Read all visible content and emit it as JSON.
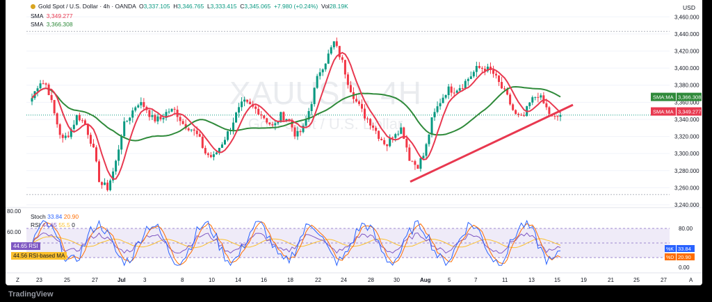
{
  "header": {
    "title": "Gold Spot / U.S. Dollar · 4h · OANDA",
    "open_label": "O",
    "open": "3,337.105",
    "high_label": "H",
    "high": "3,346.765",
    "low_label": "L",
    "low": "3,333.415",
    "close_label": "C",
    "close": "3,345.065",
    "change": "+7.980 (+0.24%)",
    "vol_label": "Vol",
    "vol": "28.19K",
    "sma1_label": "SMA",
    "sma1_value": "3,349.277",
    "sma2_label": "SMA",
    "sma2_value": "3,366.308",
    "currency": "USD"
  },
  "watermark": {
    "symbol": "XAUUSD, 4H",
    "name": "Gold Spot / U.S. Dollar"
  },
  "price_axis": {
    "ticks": [
      "3,460.000",
      "3,440.000",
      "3,420.000",
      "3,400.000",
      "3,380.000",
      "3,360.000",
      "3,340.000",
      "3,320.000",
      "3,300.000",
      "3,280.000",
      "3,260.000",
      "3,240.000"
    ],
    "tag_sma2_label": "SMA:MA",
    "tag_sma2_value": "3,366.308",
    "tag_sma1_label": "SMA:MA",
    "tag_sma1_value": "3,349.277"
  },
  "time_axis": {
    "labels": [
      "Z",
      "23",
      "25",
      "27",
      "Jul",
      "3",
      "8",
      "10",
      "14",
      "16",
      "18",
      "22",
      "24",
      "28",
      "30",
      "Aug",
      "5",
      "7",
      "11",
      "13",
      "15",
      "19",
      "21",
      "25",
      "27",
      "A"
    ]
  },
  "oscillator": {
    "stoch_label": "Stoch",
    "stoch_k": "33.84",
    "stoch_d": "20.90",
    "rsi_label": "RSI",
    "rsi_a": "44.65",
    "rsi_b": "55.5",
    "rsi_c": "0",
    "left_ticks": [
      "80.00",
      "60.00"
    ],
    "right_ticks": [
      "80.00",
      "20.00",
      "0.00"
    ],
    "left_rsi_value": "44.65",
    "left_rsi_tag": "RSI",
    "left_rsima_value": "44.56",
    "left_rsima_tag": "RSI-based MA",
    "right_k_tag": "%K",
    "right_k_value": "33.84",
    "right_d_tag": "%D",
    "right_d_value": "20.90"
  },
  "brand": {
    "name": "TradingView"
  },
  "colors": {
    "up": "#089981",
    "down": "#f23645",
    "sma_fast": "#e8384f",
    "sma_slow": "#2f8a3a",
    "trendline": "#e8384f",
    "stoch_k": "#2962ff",
    "stoch_d": "#ff6d00",
    "rsi": "#7e57c2",
    "rsi_ma": "#fbc02d",
    "band": "#7e57c2"
  },
  "chart_data": {
    "type": "candlestick",
    "title": "Gold Spot / U.S. Dollar · 4h · OANDA",
    "ylim": [
      3240,
      3470
    ],
    "x_labels": [
      "23",
      "25",
      "27",
      "Jul",
      "3",
      "8",
      "10",
      "14",
      "16",
      "18",
      "22",
      "24",
      "28",
      "30",
      "Aug",
      "5",
      "7",
      "11",
      "13",
      "15"
    ],
    "close_path": [
      3365,
      3385,
      3380,
      3345,
      3315,
      3325,
      3345,
      3335,
      3310,
      3265,
      3260,
      3285,
      3330,
      3345,
      3360,
      3355,
      3340,
      3340,
      3350,
      3350,
      3335,
      3330,
      3320,
      3300,
      3295,
      3310,
      3325,
      3345,
      3360,
      3355,
      3350,
      3340,
      3330,
      3345,
      3340,
      3320,
      3330,
      3360,
      3395,
      3410,
      3430,
      3410,
      3380,
      3360,
      3345,
      3335,
      3320,
      3310,
      3325,
      3330,
      3295,
      3285,
      3300,
      3340,
      3360,
      3375,
      3375,
      3380,
      3390,
      3400,
      3400,
      3395,
      3380,
      3365,
      3345,
      3340,
      3360,
      3370,
      3355,
      3340,
      3345
    ],
    "sma_fast_last": 3349.277,
    "sma_slow_last": 3366.308,
    "trendline": {
      "from": {
        "x": "30",
        "y": 3267
      },
      "to": {
        "x": "15",
        "y": 3357
      }
    },
    "oscillator_ylim": [
      0,
      100
    ],
    "stoch_k_last": 33.84,
    "stoch_d_last": 20.9
  }
}
